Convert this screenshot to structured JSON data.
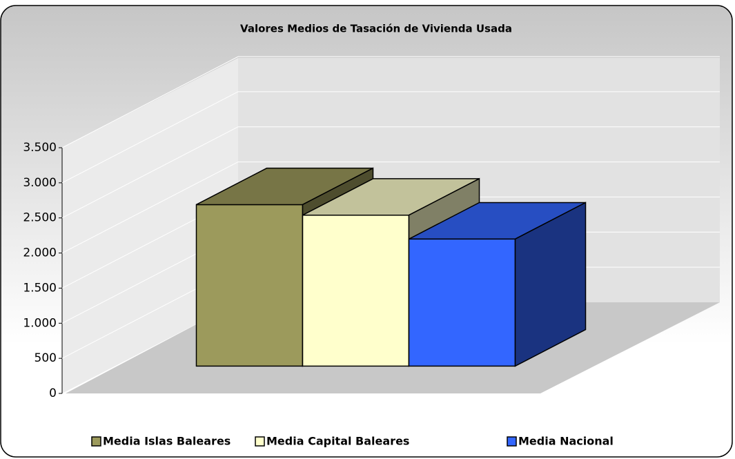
{
  "chart_data": {
    "type": "bar3d",
    "title": "Valores Medios de Tasación de Vivienda Usada",
    "categories": [
      "Media Islas Baleares",
      "Media Capital Baleares",
      "Media Nacional"
    ],
    "values": [
      2300,
      2150,
      1810
    ],
    "colors": [
      "#9c9a5c",
      "#ffffcc",
      "#3366ff"
    ],
    "ylim": [
      0,
      3500
    ],
    "yticks": [
      0,
      500,
      {
        "value": 1000,
        "label": "1.000"
      },
      {
        "value": 1500,
        "label": "1.500"
      },
      {
        "value": 2000,
        "label": "2.000"
      },
      {
        "value": 2500,
        "label": "2.500"
      },
      {
        "value": 3000,
        "label": "3.000"
      },
      {
        "value": 3500,
        "label": "3.500"
      }
    ],
    "grid": true
  }
}
